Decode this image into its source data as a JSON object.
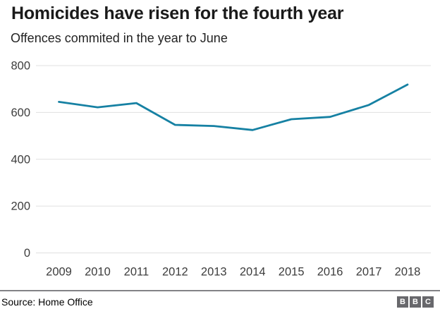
{
  "header": {
    "title": "Homicides have risen for the fourth year",
    "subtitle": "Offences commited in the year to June"
  },
  "chart_data": {
    "type": "line",
    "title": "Homicides have risen for the fourth year",
    "subtitle": "Offences commited in the year to June",
    "x": [
      "2009",
      "2010",
      "2011",
      "2012",
      "2013",
      "2014",
      "2015",
      "2016",
      "2017",
      "2018"
    ],
    "series": [
      {
        "name": "Offences committed in the year to June",
        "values": [
          645,
          622,
          640,
          547,
          542,
          525,
          571,
          581,
          632,
          719
        ]
      }
    ],
    "xlabel": "",
    "ylabel": "",
    "ylim": [
      0,
      800
    ],
    "yticks": [
      0,
      200,
      400,
      600,
      800
    ],
    "grid": true,
    "legend": "none",
    "line_color": "#1681a3",
    "grid_color": "#e0e0e0",
    "tick_color": "#3d3d3d"
  },
  "footer": {
    "source": "Source: Home Office",
    "divider_color": "#828286",
    "logo_color": "#68686c",
    "logo_letters": [
      "B",
      "B",
      "C"
    ]
  }
}
